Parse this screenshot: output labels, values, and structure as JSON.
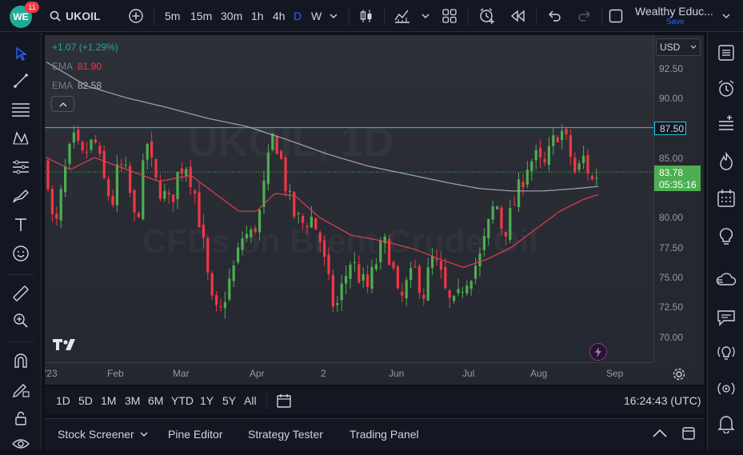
{
  "header": {
    "logo_text": "WE",
    "notification_count": "11",
    "symbol": "UKOIL",
    "intervals": [
      "5m",
      "15m",
      "30m",
      "1h",
      "4h",
      "D",
      "W"
    ],
    "active_interval": "D",
    "layout_name": "Wealthy Educ...",
    "save_label": "Save"
  },
  "legend": {
    "change": "+1.07 (+1.29%)",
    "ema1_label": "EMA",
    "ema1_value": "81.90",
    "ema2_label": "EMA",
    "ema2_value": "82.58"
  },
  "watermark": {
    "line1": "UKOIL, 1D",
    "line2": "CFDs on Brent Crude Oil"
  },
  "currency": "USD",
  "price_axis": {
    "labels": [
      "92.50",
      "90.00",
      "87.50",
      "85.00",
      "82.50",
      "80.00",
      "77.50",
      "75.00",
      "72.50",
      "70.00"
    ],
    "horizontal_line_label": "87.50",
    "last_price": "83.78",
    "countdown": "05:35:16"
  },
  "time_axis": {
    "labels": [
      "'23",
      "Feb",
      "Mar",
      "Apr",
      "2",
      "Jun",
      "Jul",
      "Aug",
      "Sep"
    ]
  },
  "ranges": [
    "1D",
    "5D",
    "1M",
    "3M",
    "6M",
    "YTD",
    "1Y",
    "5Y",
    "All"
  ],
  "clock": "16:24:43 (UTC)",
  "panels": {
    "stock_screener": "Stock Screener",
    "pine_editor": "Pine Editor",
    "strategy_tester": "Strategy Tester",
    "trading_panel": "Trading Panel"
  },
  "colors": {
    "up": "#26a69a",
    "up_candle": "#4caf50",
    "down": "#f23645",
    "ema_fast": "#e0404d",
    "ema_slow": "#a3a6af",
    "hline": "#26c6da",
    "last_price_bg": "#4caf50"
  },
  "chart_data": {
    "type": "candlestick",
    "symbol": "UKOIL",
    "ylim": [
      69,
      93.5
    ],
    "horizontal_line": 87.5,
    "last_price": 83.78,
    "close_path": [
      {
        "t": 0,
        "v": 84.5
      },
      {
        "t": 10,
        "v": 78.2
      },
      {
        "t": 22,
        "v": 83.5
      },
      {
        "t": 33,
        "v": 86.5
      },
      {
        "t": 45,
        "v": 85.0
      },
      {
        "t": 60,
        "v": 86.5
      },
      {
        "t": 72,
        "v": 83.0
      },
      {
        "t": 82,
        "v": 81.0
      },
      {
        "t": 90,
        "v": 84.5
      },
      {
        "t": 100,
        "v": 83.5
      },
      {
        "t": 112,
        "v": 79.0
      },
      {
        "t": 125,
        "v": 86.5
      },
      {
        "t": 135,
        "v": 83.0
      },
      {
        "t": 145,
        "v": 82.0
      },
      {
        "t": 155,
        "v": 81.0
      },
      {
        "t": 165,
        "v": 84.0
      },
      {
        "t": 175,
        "v": 84.5
      },
      {
        "t": 185,
        "v": 82.0
      },
      {
        "t": 195,
        "v": 78.0
      },
      {
        "t": 205,
        "v": 73.0
      },
      {
        "t": 215,
        "v": 71.5
      },
      {
        "t": 225,
        "v": 74.0
      },
      {
        "t": 235,
        "v": 76.0
      },
      {
        "t": 245,
        "v": 78.5
      },
      {
        "t": 255,
        "v": 78.5
      },
      {
        "t": 265,
        "v": 80.0
      },
      {
        "t": 275,
        "v": 84.0
      },
      {
        "t": 283,
        "v": 87.0
      },
      {
        "t": 292,
        "v": 85.0
      },
      {
        "t": 300,
        "v": 82.0
      },
      {
        "t": 310,
        "v": 80.0
      },
      {
        "t": 320,
        "v": 79.5
      },
      {
        "t": 330,
        "v": 80.0
      },
      {
        "t": 340,
        "v": 78.5
      },
      {
        "t": 350,
        "v": 75.0
      },
      {
        "t": 360,
        "v": 72.0
      },
      {
        "t": 370,
        "v": 74.5
      },
      {
        "t": 380,
        "v": 76.5
      },
      {
        "t": 390,
        "v": 75.0
      },
      {
        "t": 400,
        "v": 74.0
      },
      {
        "t": 410,
        "v": 76.0
      },
      {
        "t": 420,
        "v": 78.0
      },
      {
        "t": 430,
        "v": 76.5
      },
      {
        "t": 440,
        "v": 72.5
      },
      {
        "t": 450,
        "v": 74.5
      },
      {
        "t": 460,
        "v": 75.5
      },
      {
        "t": 470,
        "v": 73.5
      },
      {
        "t": 480,
        "v": 76.5
      },
      {
        "t": 490,
        "v": 75.5
      },
      {
        "t": 500,
        "v": 73.0
      },
      {
        "t": 510,
        "v": 72.5
      },
      {
        "t": 520,
        "v": 74.5
      },
      {
        "t": 530,
        "v": 75.5
      },
      {
        "t": 540,
        "v": 76.5
      },
      {
        "t": 550,
        "v": 79.0
      },
      {
        "t": 560,
        "v": 81.5
      },
      {
        "t": 570,
        "v": 78.5
      },
      {
        "t": 580,
        "v": 80.5
      },
      {
        "t": 590,
        "v": 82.5
      },
      {
        "t": 600,
        "v": 84.5
      },
      {
        "t": 610,
        "v": 85.0
      },
      {
        "t": 620,
        "v": 84.0
      },
      {
        "t": 630,
        "v": 86.0
      },
      {
        "t": 640,
        "v": 87.5
      },
      {
        "t": 650,
        "v": 86.0
      },
      {
        "t": 660,
        "v": 83.5
      },
      {
        "t": 670,
        "v": 85.0
      },
      {
        "t": 680,
        "v": 83.0
      },
      {
        "t": 688,
        "v": 83.8
      }
    ],
    "ema_fast_path": [
      {
        "t": 0,
        "v": 85.0
      },
      {
        "t": 30,
        "v": 84.0
      },
      {
        "t": 60,
        "v": 85.0
      },
      {
        "t": 100,
        "v": 84.0
      },
      {
        "t": 140,
        "v": 83.0
      },
      {
        "t": 180,
        "v": 83.5
      },
      {
        "t": 210,
        "v": 82.0
      },
      {
        "t": 240,
        "v": 80.5
      },
      {
        "t": 262,
        "v": 80.5
      },
      {
        "t": 285,
        "v": 82.0
      },
      {
        "t": 310,
        "v": 81.8
      },
      {
        "t": 340,
        "v": 80.0
      },
      {
        "t": 380,
        "v": 78.5
      },
      {
        "t": 420,
        "v": 78.0
      },
      {
        "t": 460,
        "v": 77.3
      },
      {
        "t": 490,
        "v": 76.5
      },
      {
        "t": 520,
        "v": 75.8
      },
      {
        "t": 550,
        "v": 76.5
      },
      {
        "t": 580,
        "v": 77.5
      },
      {
        "t": 610,
        "v": 79.0
      },
      {
        "t": 640,
        "v": 80.5
      },
      {
        "t": 670,
        "v": 81.5
      },
      {
        "t": 688,
        "v": 81.9
      }
    ],
    "ema_slow_path": [
      {
        "t": 0,
        "v": 93.0
      },
      {
        "t": 50,
        "v": 91.0
      },
      {
        "t": 100,
        "v": 90.0
      },
      {
        "t": 150,
        "v": 89.2
      },
      {
        "t": 200,
        "v": 88.3
      },
      {
        "t": 250,
        "v": 87.6
      },
      {
        "t": 300,
        "v": 86.5
      },
      {
        "t": 350,
        "v": 85.3
      },
      {
        "t": 400,
        "v": 84.3
      },
      {
        "t": 450,
        "v": 83.6
      },
      {
        "t": 500,
        "v": 82.9
      },
      {
        "t": 540,
        "v": 82.4
      },
      {
        "t": 580,
        "v": 82.2
      },
      {
        "t": 620,
        "v": 82.2
      },
      {
        "t": 660,
        "v": 82.4
      },
      {
        "t": 688,
        "v": 82.58
      }
    ]
  }
}
